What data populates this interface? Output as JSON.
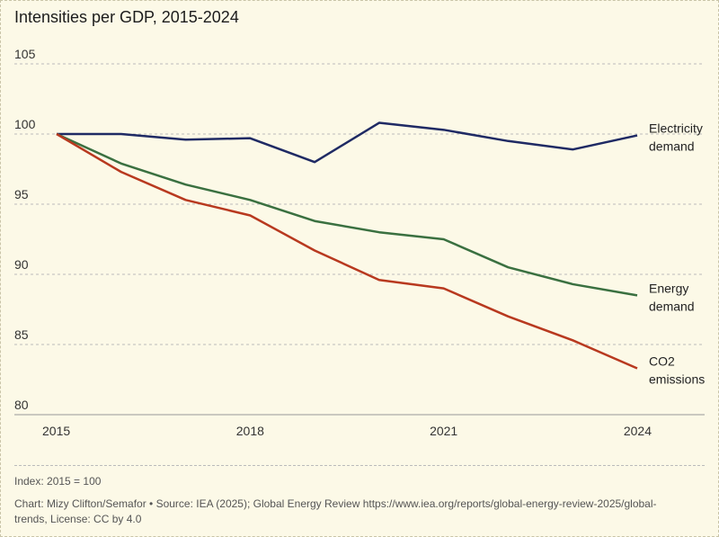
{
  "chart_data": {
    "type": "line",
    "title": "Intensities per GDP, 2015-2024",
    "x": [
      2015,
      2016,
      2017,
      2018,
      2019,
      2020,
      2021,
      2022,
      2023,
      2024
    ],
    "xticks": [
      "2015",
      "2018",
      "2021",
      "2024"
    ],
    "ylim": [
      80,
      105
    ],
    "yticks": [
      "80",
      "85",
      "90",
      "95",
      "100",
      "105"
    ],
    "grid": true,
    "series": [
      {
        "name": "Electricity demand",
        "label_lines": [
          "Electricity",
          "demand"
        ],
        "color": "#1f2a64",
        "values": [
          100,
          100,
          99.6,
          99.7,
          98.0,
          100.8,
          100.3,
          99.5,
          98.9,
          99.9
        ]
      },
      {
        "name": "Energy demand",
        "label_lines": [
          "Energy",
          "demand"
        ],
        "color": "#3a7040",
        "values": [
          100,
          97.9,
          96.4,
          95.3,
          93.8,
          93.0,
          92.5,
          90.5,
          89.3,
          88.5
        ]
      },
      {
        "name": "CO2 emissions",
        "label_lines": [
          "CO2",
          "emissions"
        ],
        "color": "#b8391f",
        "values": [
          100,
          97.3,
          95.3,
          94.2,
          91.7,
          89.6,
          89.0,
          87.0,
          85.3,
          83.3
        ]
      }
    ]
  },
  "footer": {
    "note": "Index: 2015 = 100",
    "credit": "Chart: Mizy Clifton/Semafor • Source: IEA (2025); Global Energy Review https://www.iea.org/reports/global-energy-review-2025/global-trends, License: CC by 4.0"
  }
}
